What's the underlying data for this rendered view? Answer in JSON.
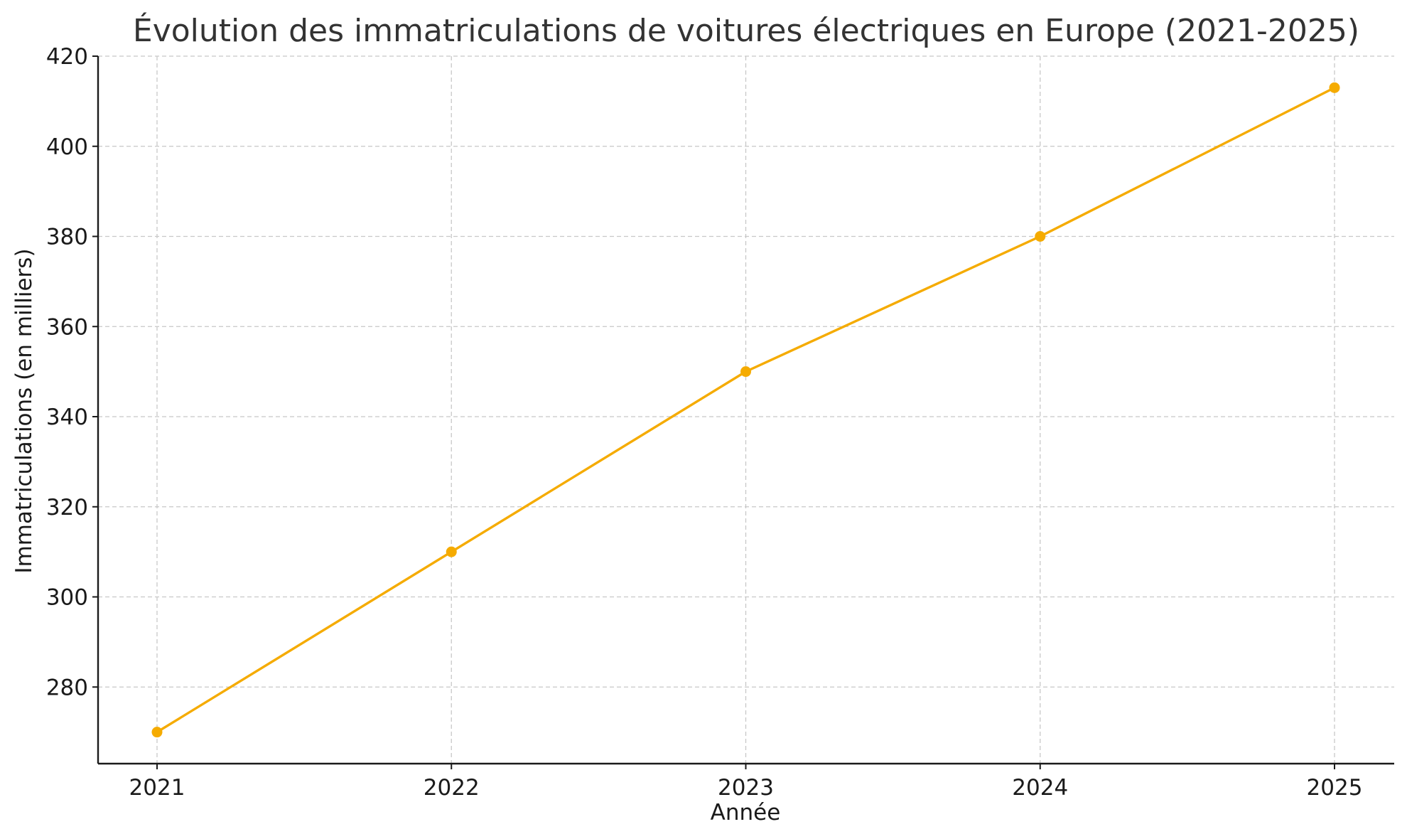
{
  "chart_data": {
    "type": "line",
    "title": "Évolution des immatriculations de voitures électriques en Europe (2021-2025)",
    "xlabel": "Année",
    "ylabel": "Immatriculations (en milliers)",
    "categories": [
      "2021",
      "2022",
      "2023",
      "2024",
      "2025"
    ],
    "series": [
      {
        "values": [
          270,
          310,
          350,
          380,
          413
        ]
      }
    ],
    "ylim": [
      263,
      420
    ],
    "yticks": [
      280,
      300,
      320,
      340,
      360,
      380,
      400,
      420
    ],
    "grid": true,
    "marker": "circle",
    "colors": {
      "line": "#F5AB00",
      "grid": "#C8C8C8",
      "axis": "#1A1A1A",
      "title": "#333333"
    }
  }
}
